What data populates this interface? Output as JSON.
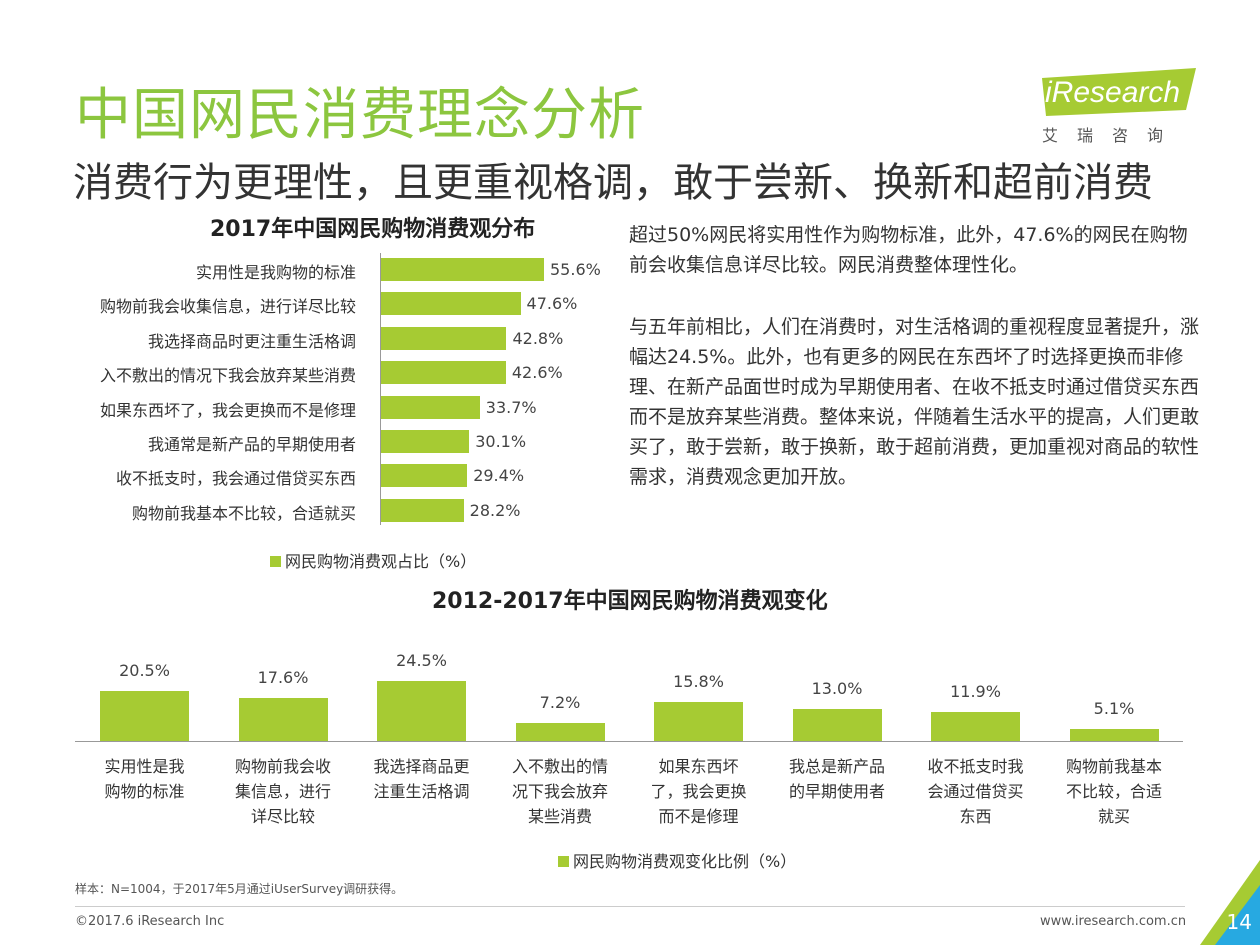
{
  "header": {
    "title": "中国网民消费理念分析",
    "subtitle": "消费行为更理性，且更重视格调，敢于尝新、换新和超前消费"
  },
  "logo": {
    "brand": "iResearch",
    "cn": "艾瑞咨询"
  },
  "text": {
    "para1": "超过50%网民将实用性作为购物标准，此外，47.6%的网民在购物前会收集信息详尽比较。网民消费整体理性化。",
    "para2": "与五年前相比，人们在消费时，对生活格调的重视程度显著提升，涨幅达24.5%。此外，也有更多的网民在东西坏了时选择更换而非修理、在新产品面世时成为早期使用者、在收不抵支时通过借贷买东西而不是放弃某些消费。整体来说，伴随着生活水平的提高，人们更敢买了，敢于尝新，敢于换新，敢于超前消费，更加重视对商品的软性需求，消费观念更加开放。"
  },
  "chart_data": [
    {
      "type": "bar",
      "orientation": "horizontal",
      "title": "2017年中国网民购物消费观分布",
      "categories": [
        "实用性是我购物的标准",
        "购物前我会收集信息，进行详尽比较",
        "我选择商品时更注重生活格调",
        "入不敷出的情况下我会放弃某些消费",
        "如果东西坏了，我会更换而不是修理",
        "我通常是新产品的早期使用者",
        "收不抵支时，我会通过借贷买东西",
        "购物前我基本不比较，合适就买"
      ],
      "series": [
        {
          "name": "网民购物消费观占比（%）",
          "values": [
            55.6,
            47.6,
            42.8,
            42.6,
            33.7,
            30.1,
            29.4,
            28.2
          ]
        }
      ],
      "value_labels": [
        "55.6%",
        "47.6%",
        "42.8%",
        "42.6%",
        "33.7%",
        "30.1%",
        "29.4%",
        "28.2%"
      ],
      "color": "#a6cb33",
      "xlim": [
        0,
        60
      ]
    },
    {
      "type": "bar",
      "orientation": "vertical",
      "title": "2012-2017年中国网民购物消费观变化",
      "categories": [
        "实用性是我\n购物的标准",
        "购物前我会收\n集信息，进行\n详尽比较",
        "我选择商品更\n注重生活格调",
        "入不敷出的情\n况下我会放弃\n某些消费",
        "如果东西坏\n了，我会更换\n而不是修理",
        "我总是新产品\n的早期使用者",
        "收不抵支时我\n会通过借贷买\n东西",
        "购物前我基本\n不比较，合适\n就买"
      ],
      "series": [
        {
          "name": "网民购物消费观变化比例（%）",
          "values": [
            20.5,
            17.6,
            24.5,
            7.2,
            15.8,
            13.0,
            11.9,
            5.1
          ]
        }
      ],
      "value_labels": [
        "20.5%",
        "17.6%",
        "24.5%",
        "7.2%",
        "15.8%",
        "13.0%",
        "11.9%",
        "5.1%"
      ],
      "color": "#a6cb33",
      "ylim": [
        0,
        25
      ]
    }
  ],
  "footer": {
    "note": "样本：N=1004，于2017年5月通过iUserSurvey调研获得。",
    "copyright": "©2017.6 iResearch Inc",
    "website": "www.iresearch.com.cn",
    "page": "14"
  }
}
